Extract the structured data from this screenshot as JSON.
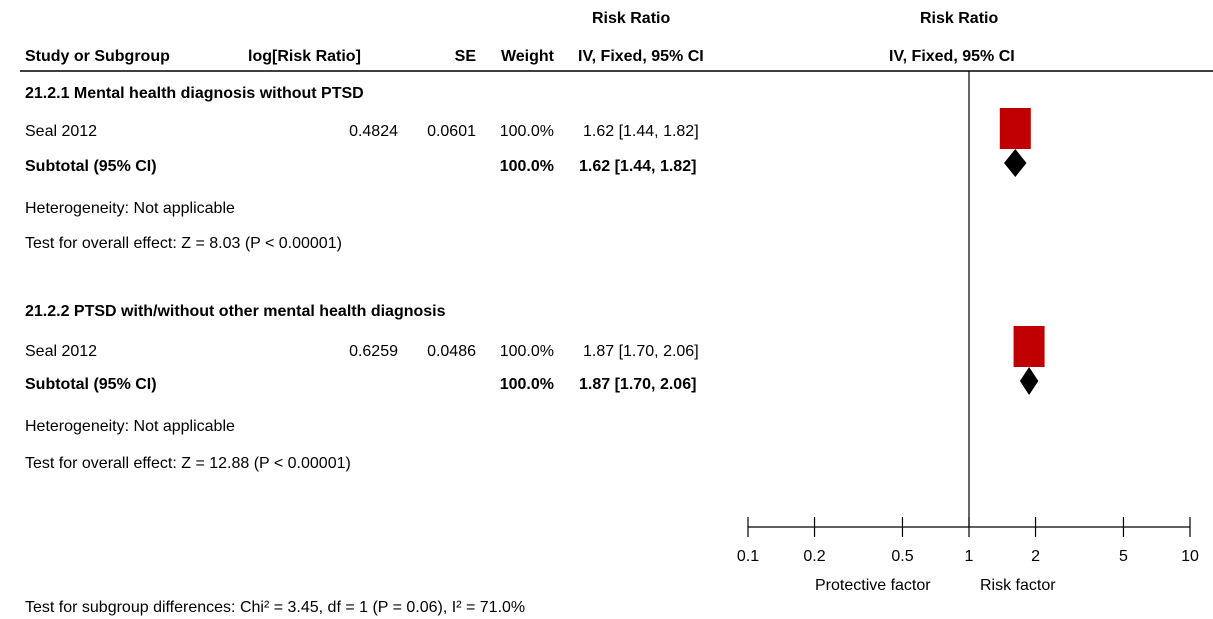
{
  "header": {
    "risk_ratio_left": "Risk Ratio",
    "risk_ratio_right": "Risk Ratio",
    "col_study": "Study or Subgroup",
    "col_logrr": "log[Risk Ratio]",
    "col_se": "SE",
    "col_weight": "Weight",
    "col_ci_left": "IV, Fixed, 95% CI",
    "col_ci_right": "IV, Fixed, 95% CI"
  },
  "groups": [
    {
      "title": "21.2.1 Mental health diagnosis without PTSD",
      "study": {
        "name": "Seal 2012",
        "log_rr": "0.4824",
        "se": "0.0601",
        "weight": "100.0%",
        "ci": "1.62 [1.44, 1.82]"
      },
      "subtotal": {
        "label": "Subtotal (95% CI)",
        "weight": "100.0%",
        "ci": "1.62 [1.44, 1.82]"
      },
      "heterogeneity": "Heterogeneity: Not applicable",
      "overall": "Test for overall effect: Z = 8.03 (P < 0.00001)"
    },
    {
      "title": "21.2.2 PTSD with/without other mental health diagnosis",
      "study": {
        "name": "Seal 2012",
        "log_rr": "0.6259",
        "se": "0.0486",
        "weight": "100.0%",
        "ci": "1.87 [1.70, 2.06]"
      },
      "subtotal": {
        "label": "Subtotal (95% CI)",
        "weight": "100.0%",
        "ci": "1.87 [1.70, 2.06]"
      },
      "heterogeneity": "Heterogeneity: Not applicable",
      "overall": "Test for overall effect: Z = 12.88 (P < 0.00001)"
    }
  ],
  "footer": {
    "subgroup_test": "Test for subgroup differences: Chi² = 3.45, df = 1 (P = 0.06), I² = 71.0%",
    "protective": "Protective factor",
    "risk": "Risk factor"
  },
  "chart_data": {
    "type": "forest",
    "scale": "log",
    "xlim": [
      0.1,
      10
    ],
    "ticks": [
      0.1,
      0.2,
      0.5,
      1,
      2,
      5,
      10
    ],
    "tick_labels": [
      "0.1",
      "0.2",
      "0.5",
      "1",
      "2",
      "5",
      "10"
    ],
    "null_line": 1,
    "studies": [
      {
        "group": "21.2.1",
        "rr": 1.62,
        "lo": 1.44,
        "hi": 1.82,
        "weight": 100.0
      },
      {
        "group": "21.2.2",
        "rr": 1.87,
        "lo": 1.7,
        "hi": 2.06,
        "weight": 100.0
      }
    ],
    "subtotals": [
      {
        "group": "21.2.1",
        "rr": 1.62,
        "lo": 1.44,
        "hi": 1.82
      },
      {
        "group": "21.2.2",
        "rr": 1.87,
        "lo": 1.7,
        "hi": 2.06
      }
    ],
    "colors": {
      "study_box": "#c00000",
      "diamond": "#000000"
    }
  }
}
